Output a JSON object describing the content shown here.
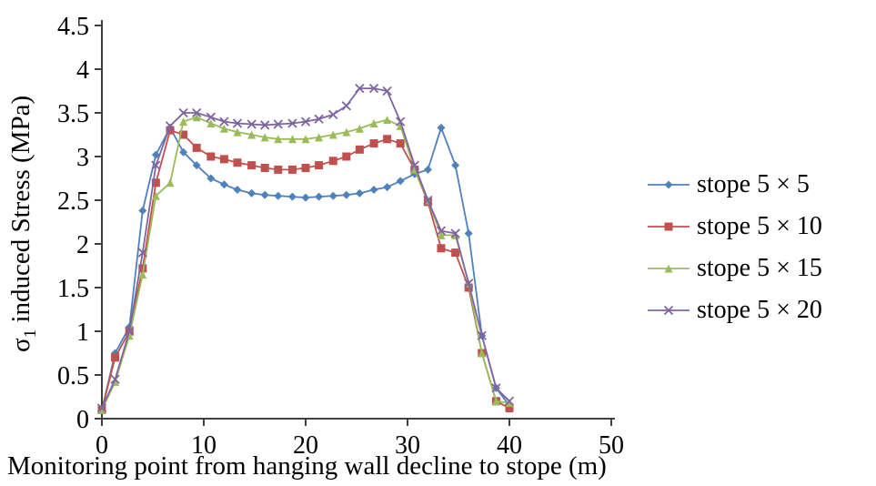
{
  "figure": {
    "background": "#ffffff"
  },
  "chart_data": {
    "type": "line",
    "title": "",
    "xlabel": "Monitoring point from hanging wall decline to stope (m)",
    "ylabel": "σ1 induced Stress (MPa)",
    "ylabel_parts": {
      "symbol": "σ",
      "subscript": "1",
      "rest": " induced Stress (MPa)"
    },
    "xlim": [
      0,
      50
    ],
    "ylim": [
      0,
      4.5
    ],
    "x_ticks": [
      0,
      10,
      20,
      30,
      40,
      50
    ],
    "y_ticks": [
      0,
      0.5,
      1,
      1.5,
      2,
      2.5,
      3,
      3.5,
      4,
      4.5
    ],
    "grid": false,
    "legend_position": "right",
    "axis_color": "#3f3f3f",
    "x": [
      0,
      1.3,
      2.7,
      4,
      5.3,
      6.7,
      8,
      9.3,
      10.7,
      12,
      13.3,
      14.7,
      16,
      17.3,
      18.7,
      20,
      21.3,
      22.7,
      24,
      25.3,
      26.7,
      28,
      29.3,
      30.7,
      32,
      33.3,
      34.7,
      36,
      37.3,
      38.7,
      40
    ],
    "series": [
      {
        "label": "stope 5 × 5",
        "color": "#4F81BD",
        "marker": "diamond",
        "values": [
          0.1,
          0.75,
          1.05,
          2.38,
          3.02,
          3.33,
          3.05,
          2.9,
          2.75,
          2.68,
          2.62,
          2.58,
          2.56,
          2.55,
          2.54,
          2.53,
          2.54,
          2.55,
          2.56,
          2.58,
          2.62,
          2.65,
          2.72,
          2.8,
          2.85,
          3.33,
          2.9,
          2.12,
          0.95,
          0.35,
          0.15
        ]
      },
      {
        "label": "stope 5 × 10",
        "color": "#C0504D",
        "marker": "square",
        "values": [
          0.1,
          0.7,
          1.0,
          1.72,
          2.7,
          3.3,
          3.25,
          3.1,
          3.0,
          2.97,
          2.93,
          2.9,
          2.87,
          2.85,
          2.85,
          2.87,
          2.9,
          2.95,
          3.0,
          3.08,
          3.15,
          3.2,
          3.15,
          2.85,
          2.48,
          1.95,
          1.9,
          1.5,
          0.75,
          0.2,
          0.12
        ]
      },
      {
        "label": "stope 5 × 15",
        "color": "#9BBB59",
        "marker": "triangle",
        "values": [
          0.1,
          0.42,
          0.95,
          1.65,
          2.55,
          2.7,
          3.4,
          3.45,
          3.38,
          3.32,
          3.28,
          3.25,
          3.22,
          3.2,
          3.2,
          3.2,
          3.22,
          3.25,
          3.28,
          3.32,
          3.38,
          3.42,
          3.35,
          2.85,
          2.5,
          2.1,
          2.1,
          1.55,
          0.75,
          0.2,
          0.18
        ]
      },
      {
        "label": "stope 5 × 20",
        "color": "#8064A2",
        "marker": "x",
        "values": [
          0.12,
          0.45,
          1.0,
          1.9,
          2.9,
          3.35,
          3.5,
          3.5,
          3.45,
          3.4,
          3.38,
          3.37,
          3.36,
          3.37,
          3.38,
          3.4,
          3.43,
          3.48,
          3.58,
          3.78,
          3.78,
          3.75,
          3.4,
          2.9,
          2.5,
          2.15,
          2.12,
          1.55,
          0.95,
          0.35,
          0.2
        ]
      }
    ]
  }
}
